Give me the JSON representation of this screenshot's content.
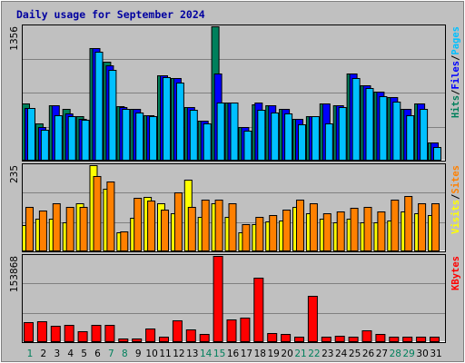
{
  "chart_data": {
    "type": "bar",
    "title": "Daily usage for September 2024",
    "days": [
      "1",
      "2",
      "3",
      "4",
      "5",
      "6",
      "7",
      "8",
      "9",
      "10",
      "11",
      "12",
      "13",
      "14",
      "15",
      "16",
      "17",
      "18",
      "19",
      "20",
      "21",
      "22",
      "23",
      "24",
      "25",
      "26",
      "27",
      "28",
      "29",
      "30",
      "31"
    ],
    "weekend_days": [
      "1",
      "7",
      "8",
      "14",
      "15",
      "21",
      "22",
      "28",
      "29"
    ],
    "panels": [
      {
        "name": "hits-files-pages",
        "max_label": "1356",
        "ylim": [
          0,
          1356
        ],
        "legend": [
          {
            "label": "Pages",
            "color": "#00c0ff"
          },
          {
            "label": "Files",
            "color": "#0000ff"
          },
          {
            "label": "Hits",
            "color": "#00805c"
          }
        ],
        "series": [
          {
            "name": "Hits",
            "color": "#00805c",
            "values": [
              580,
              380,
              560,
              520,
              450,
              1140,
              1000,
              550,
              520,
              460,
              860,
              830,
              540,
              400,
              1356,
              590,
              340,
              570,
              560,
              520,
              420,
              450,
              580,
              560,
              880,
              760,
              700,
              640,
              520,
              580,
              180
            ]
          },
          {
            "name": "Files",
            "color": "#0000ff",
            "values": [
              530,
              340,
              560,
              480,
              420,
              1140,
              960,
              540,
              520,
              460,
              860,
              830,
              540,
              400,
              880,
              590,
              340,
              590,
              560,
              520,
              420,
              450,
              580,
              560,
              880,
              760,
              700,
              640,
              520,
              580,
              180
            ]
          },
          {
            "name": "Pages",
            "color": "#00c0ff",
            "values": [
              530,
              310,
              460,
              450,
              410,
              1100,
              920,
              520,
              490,
              450,
              840,
              790,
              510,
              380,
              590,
              590,
              300,
              510,
              490,
              480,
              370,
              450,
              380,
              540,
              830,
              730,
              650,
              600,
              460,
              520,
              140
            ]
          }
        ]
      },
      {
        "name": "visits-sites",
        "max_label": "235",
        "ylim": [
          0,
          235
        ],
        "legend": [
          {
            "label": "Sites",
            "color": "#ff8000"
          },
          {
            "label": "Visits",
            "color": "#ffff00"
          }
        ],
        "series": [
          {
            "name": "Visits",
            "color": "#ffff00",
            "values": [
              72,
              88,
              88,
              80,
              130,
              235,
              170,
              52,
              92,
              148,
              130,
              105,
              195,
              95,
              130,
              95,
              52,
              75,
              82,
              85,
              120,
              105,
              88,
              78,
              88,
              78,
              80,
              85,
              110,
              105,
              98
            ]
          },
          {
            "name": "Sites",
            "color": "#ff8000",
            "values": [
              120,
              112,
              130,
              122,
              120,
              205,
              190,
              55,
              145,
              138,
              115,
              160,
              120,
              140,
              140,
              130,
              75,
              95,
              100,
              115,
              140,
              130,
              105,
              110,
              118,
              120,
              110,
              140,
              150,
              130,
              130
            ]
          }
        ]
      },
      {
        "name": "kbytes",
        "max_label": "153868",
        "ylim": [
          0,
          153868
        ],
        "legend": [
          {
            "label": "KBytes",
            "color": "#ff0000"
          }
        ],
        "series": [
          {
            "name": "KBytes",
            "color": "#ff0000",
            "values": [
              36000,
              38000,
              29000,
              31000,
              20000,
              31000,
              31000,
              6000,
              6000,
              25000,
              10000,
              39000,
              23000,
              15000,
              153868,
              41000,
              43000,
              115000,
              16000,
              15000,
              9000,
              82000,
              9000,
              11000,
              10000,
              21000,
              15000,
              10000,
              9000,
              9000,
              9000
            ]
          }
        ]
      }
    ]
  }
}
